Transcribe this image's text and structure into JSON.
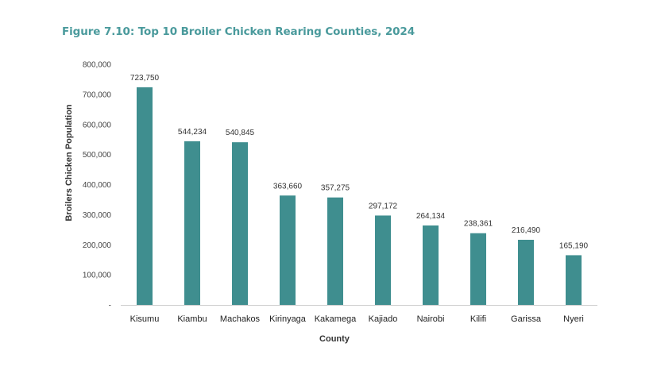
{
  "chart_data": {
    "type": "bar",
    "title": "Figure 7.10: Top 10 Broiler Chicken Rearing Counties, 2024",
    "xlabel": "County",
    "ylabel": "Broilers Chicken Population",
    "categories": [
      "Kisumu",
      "Kiambu",
      "Machakos",
      "Kirinyaga",
      "Kakamega",
      "Kajiado",
      "Nairobi",
      "Kilifi",
      "Garissa",
      "Nyeri"
    ],
    "values": [
      723750,
      544234,
      540845,
      363660,
      357275,
      297172,
      264134,
      238361,
      216490,
      165190
    ],
    "value_labels": [
      "723,750",
      "544,234",
      "540,845",
      "363,660",
      "357,275",
      "297,172",
      "264,134",
      "238,361",
      "216,490",
      "165,190"
    ],
    "ylim": [
      0,
      800000
    ],
    "yticks": [
      0,
      100000,
      200000,
      300000,
      400000,
      500000,
      600000,
      700000,
      800000
    ],
    "ytick_labels": [
      "-",
      "100,000",
      "200,000",
      "300,000",
      "400,000",
      "500,000",
      "600,000",
      "700,000",
      "800,000"
    ],
    "grid": false,
    "bar_color": "#3f8e8f",
    "title_color": "#4a9a9c"
  }
}
